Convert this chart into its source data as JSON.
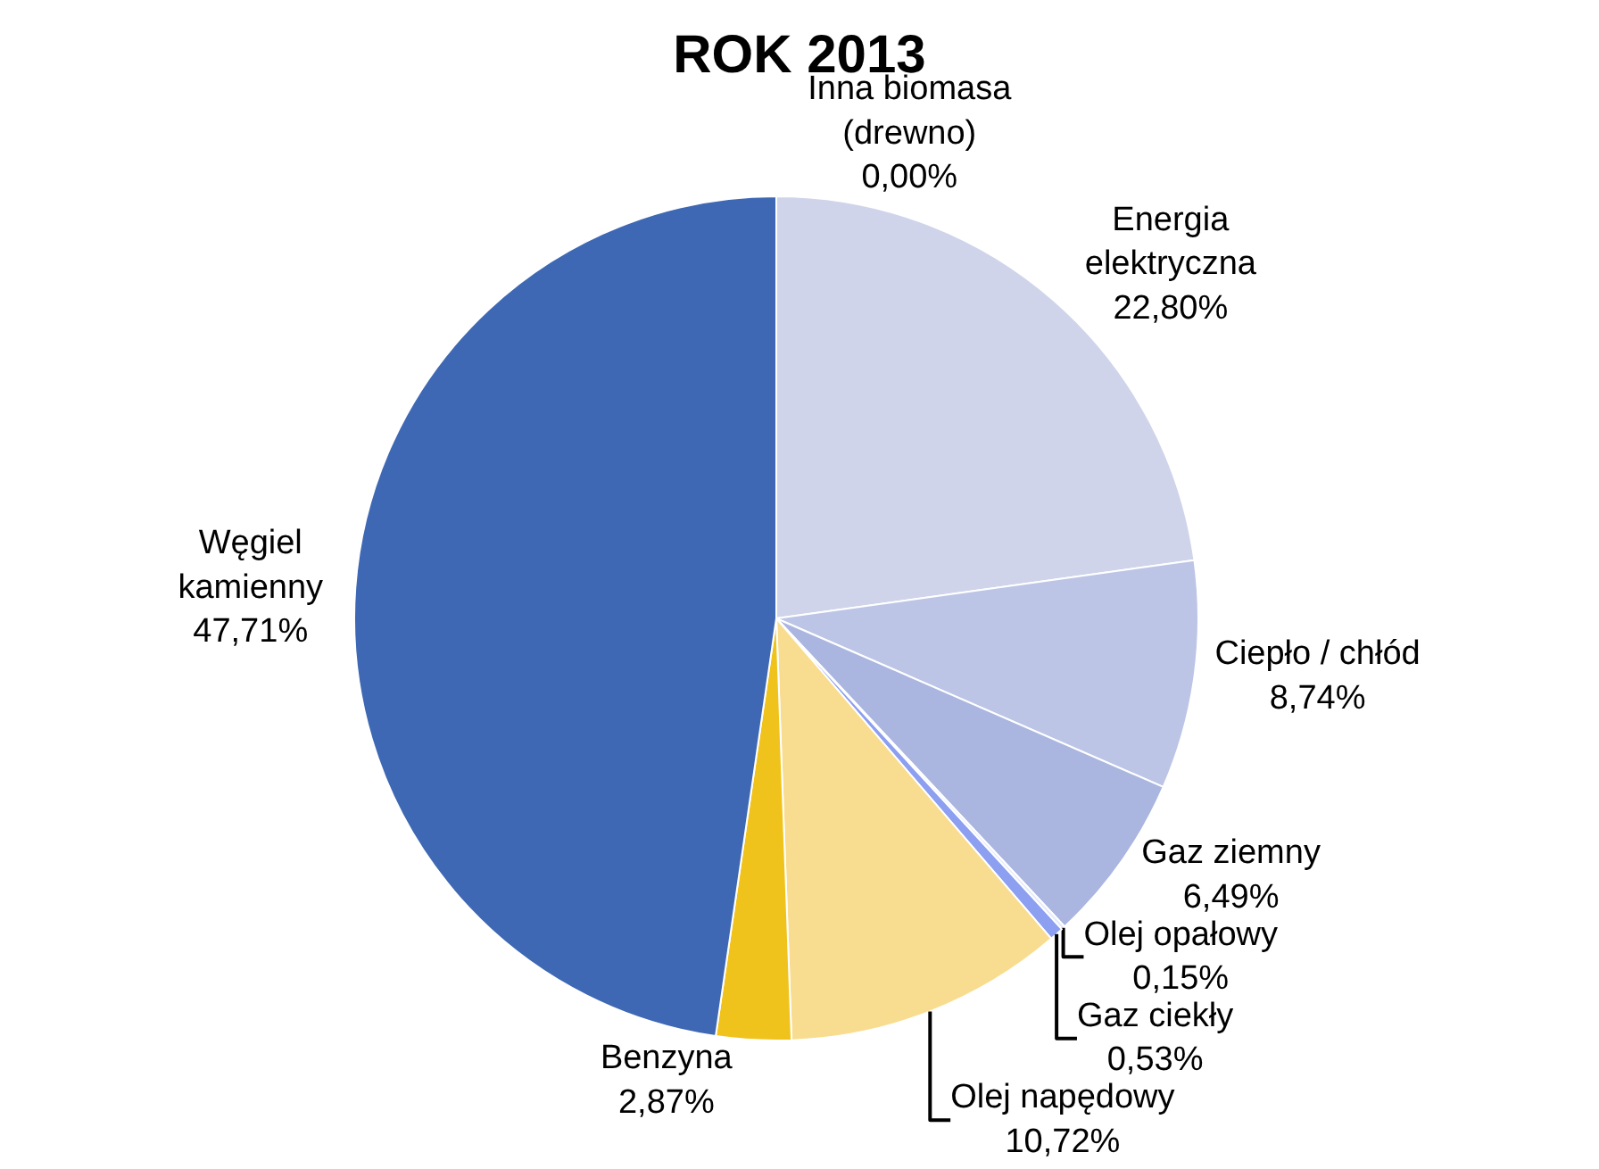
{
  "chart_data": {
    "type": "pie",
    "title": "ROK 2013",
    "categories": [
      "Energia elektryczna",
      "Ciepło / chłód",
      "Gaz ziemny",
      "Olej opałowy",
      "Gaz ciekły",
      "Olej napędowy",
      "Benzyna",
      "Węgiel kamienny",
      "Inna biomasa (drewno)"
    ],
    "values": [
      22.8,
      8.74,
      6.49,
      0.15,
      0.53,
      10.72,
      2.87,
      47.71,
      0.0
    ],
    "value_labels": [
      "22,80%",
      "8,74%",
      "6,49%",
      "0,15%",
      "0,53%",
      "10,72%",
      "2,87%",
      "47,71%",
      "0,00%"
    ],
    "colors": [
      "#cfd4ea",
      "#bcc5e6",
      "#aab6e0",
      "#e6ebfa",
      "#8c9ff0",
      "#f8dc8f",
      "#f0c31c",
      "#3e68b4",
      "#9fb0e8"
    ],
    "legend": false
  }
}
